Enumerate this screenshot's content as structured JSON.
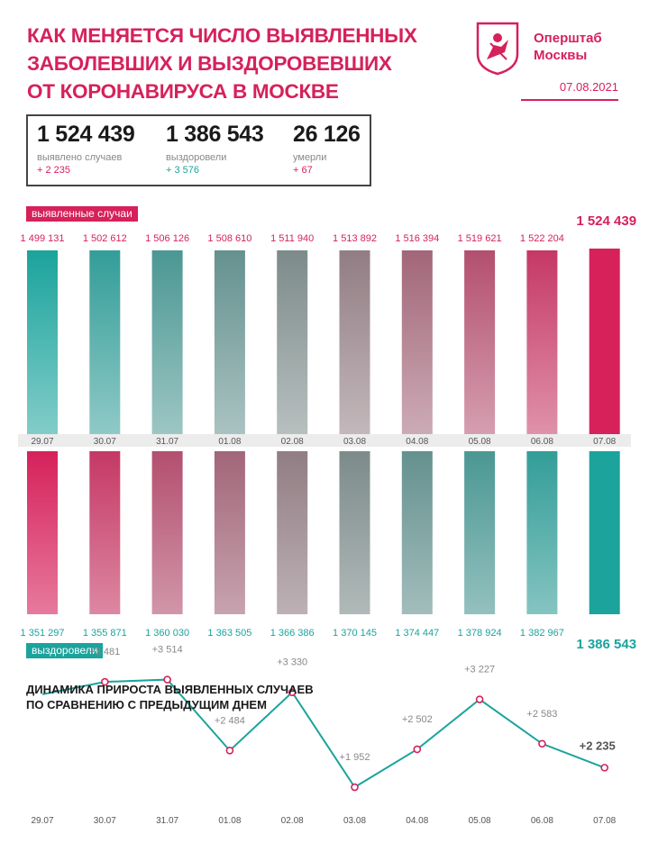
{
  "title_lines": [
    "Как меняется число выявленных",
    "заболевших и выздоровевших",
    "от коронавируса в Москве"
  ],
  "brand_lines": [
    "Оперштаб",
    "Москвы"
  ],
  "date": "07.08.2021",
  "stats": [
    {
      "value": "1 524 439",
      "label": "выявлено случаев",
      "delta": "+ 2 235"
    },
    {
      "value": "1 386 543",
      "label": "выздоровели",
      "delta": "+ 3 576"
    },
    {
      "value": "26 126",
      "label": "умерли",
      "delta": "+ 67"
    }
  ],
  "tags": {
    "cases": "выявленные случаи",
    "recovered": "выздоровели"
  },
  "dynamics_title_lines": [
    "Динамика прироста выявленных случаев",
    "по сравнению с предыдущим днем"
  ],
  "colors": {
    "accent": "#d6215b",
    "teal": "#1ba39c",
    "gray": "#888888"
  },
  "chart_data": [
    {
      "type": "bar",
      "name": "выявленные случаи",
      "categories": [
        "29.07",
        "30.07",
        "31.07",
        "01.08",
        "02.08",
        "03.08",
        "04.08",
        "05.08",
        "06.08",
        "07.08"
      ],
      "values": [
        1499131,
        1502612,
        1506126,
        1508610,
        1511940,
        1513892,
        1516394,
        1519621,
        1522204,
        1524439
      ],
      "value_labels": [
        "1 499 131",
        "1 502 612",
        "1 506 126",
        "1 508 610",
        "1 511 940",
        "1 513 892",
        "1 516 394",
        "1 519 621",
        "1 522 204",
        "1 524 439"
      ]
    },
    {
      "type": "bar",
      "name": "выздоровели",
      "categories": [
        "29.07",
        "30.07",
        "31.07",
        "01.08",
        "02.08",
        "03.08",
        "04.08",
        "05.08",
        "06.08",
        "07.08"
      ],
      "values": [
        1351297,
        1355871,
        1360030,
        1363505,
        1366386,
        1370145,
        1374447,
        1378924,
        1382967,
        1386543
      ],
      "value_labels": [
        "1 351 297",
        "1 355 871",
        "1 360 030",
        "1 363 505",
        "1 366 386",
        "1 370 145",
        "1 374 447",
        "1 378 924",
        "1 382 967",
        "1 386 543"
      ]
    },
    {
      "type": "line",
      "title": "Динамика прироста выявленных случаев по сравнению с предыдущим днем",
      "x": [
        "29.07",
        "30.07",
        "31.07",
        "01.08",
        "02.08",
        "03.08",
        "04.08",
        "05.08",
        "06.08",
        "07.08"
      ],
      "values": [
        null,
        3481,
        3514,
        2484,
        3330,
        1952,
        2502,
        3227,
        2583,
        2235
      ],
      "value_labels": [
        "",
        "+3 481",
        "+3 514",
        "+2 484",
        "+3 330",
        "+1 952",
        "+2 502",
        "+3 227",
        "+2 583",
        "+2 235"
      ],
      "line_start_value": 3300
    }
  ]
}
